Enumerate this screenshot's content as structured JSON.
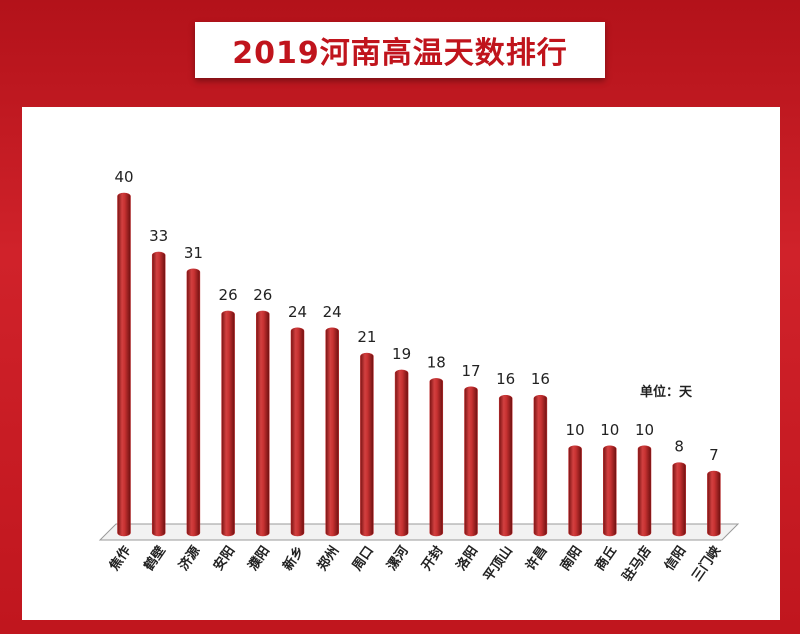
{
  "chart_data": {
    "type": "bar",
    "title": "2019河南高温天数排行",
    "unit": "单位：天",
    "categories": [
      "焦作",
      "鹤壁",
      "济源",
      "安阳",
      "濮阳",
      "新乡",
      "郑州",
      "周口",
      "漯河",
      "开封",
      "洛阳",
      "平顶山",
      "许昌",
      "南阳",
      "商丘",
      "驻马店",
      "信阳",
      "三门峡"
    ],
    "values": [
      40,
      33,
      31,
      26,
      26,
      24,
      24,
      21,
      19,
      18,
      17,
      16,
      16,
      10,
      10,
      10,
      8,
      7
    ],
    "color": "#c0292b"
  }
}
